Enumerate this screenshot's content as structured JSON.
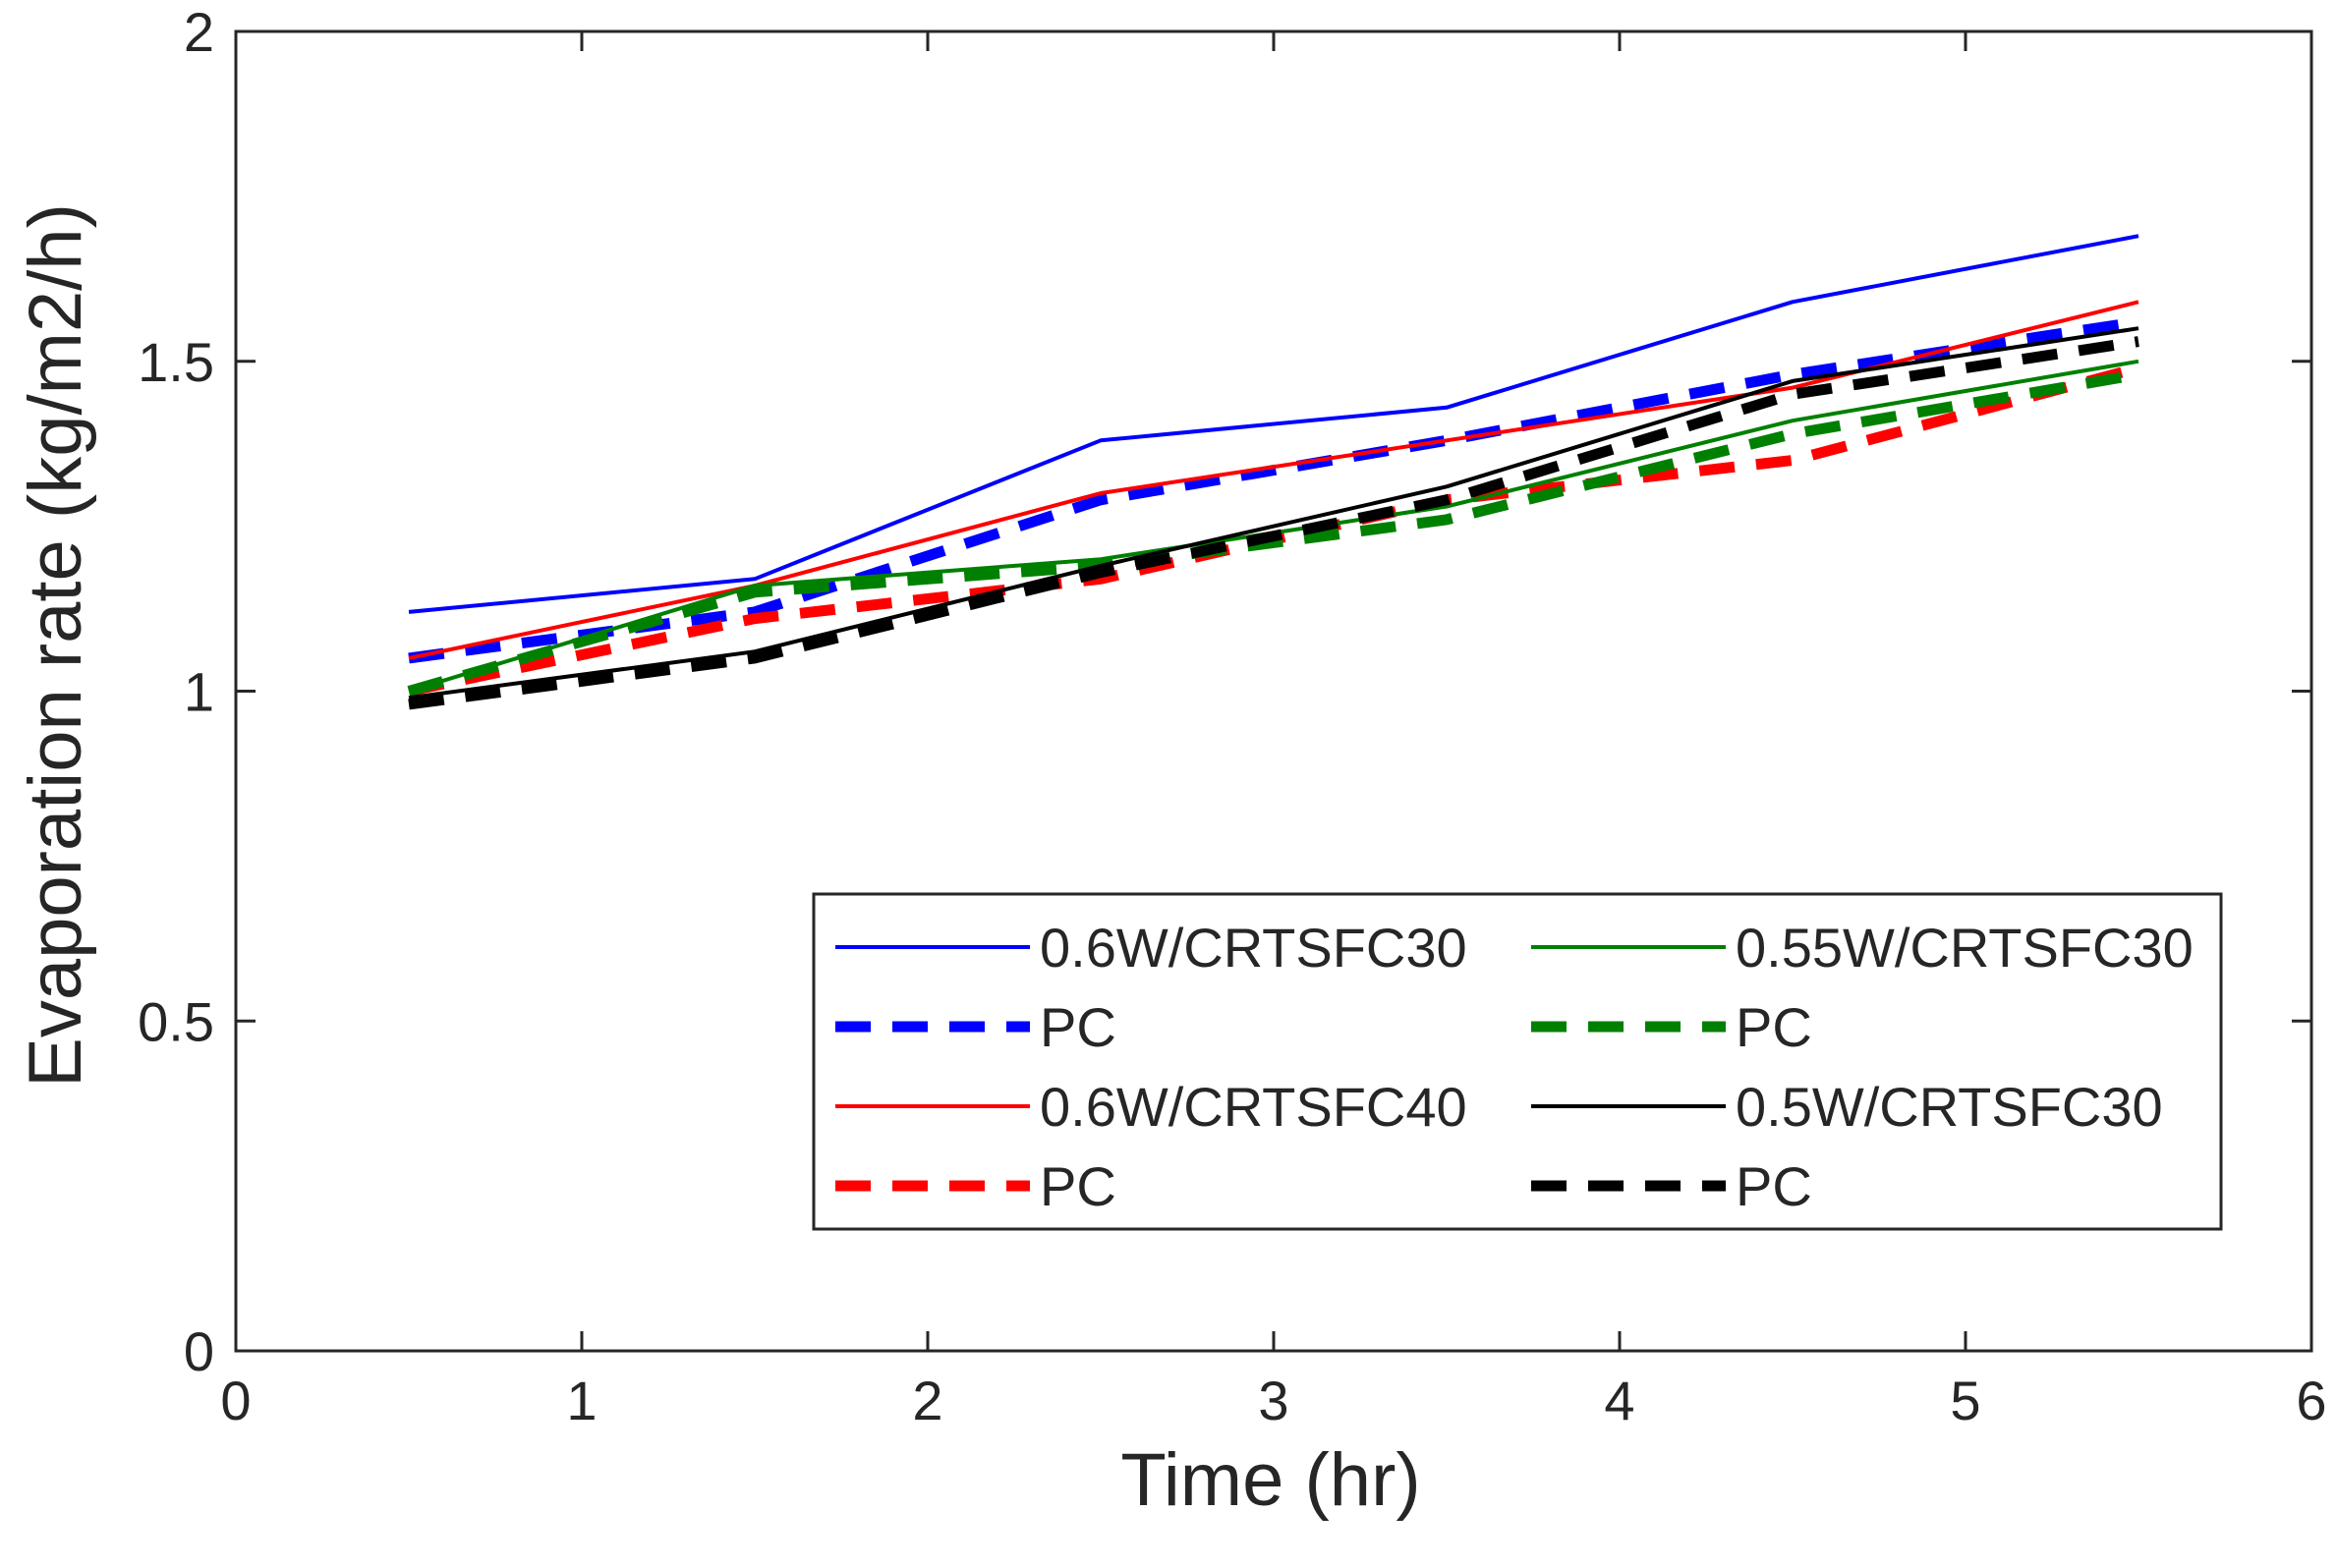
{
  "chart_data": {
    "type": "line",
    "title": "",
    "xlabel": "Time (hr)",
    "ylabel": "Evaporation rate (kg/m2/h)",
    "xlim": [
      0,
      6
    ],
    "ylim": [
      0,
      2
    ],
    "xticks": [
      0,
      1,
      2,
      3,
      4,
      5,
      6
    ],
    "yticks": [
      0,
      0.5,
      1,
      1.5,
      2
    ],
    "xtick_labels": [
      "0",
      "1",
      "2",
      "3",
      "4",
      "5",
      "6"
    ],
    "ytick_labels": [
      "0",
      "0.5",
      "1",
      "1.5",
      "2"
    ],
    "grid": false,
    "legend": {
      "placement": "lower-right",
      "columns": 2
    },
    "x": [
      0.5,
      1.5,
      2.5,
      3.5,
      4.5,
      5.5
    ],
    "series": [
      {
        "name": "0.6W/CRTSFC30",
        "color": "#0000ff",
        "style": "solid",
        "values": [
          1.12,
          1.17,
          1.38,
          1.43,
          1.59,
          1.69
        ]
      },
      {
        "name": "PC",
        "color": "#0000ff",
        "style": "dashed",
        "values": [
          1.05,
          1.12,
          1.29,
          1.38,
          1.48,
          1.56
        ]
      },
      {
        "name": "0.6W/CRTSFC40",
        "color": "#ff0000",
        "style": "solid",
        "values": [
          1.05,
          1.16,
          1.3,
          1.38,
          1.46,
          1.59
        ]
      },
      {
        "name": "PC",
        "color": "#ff0000",
        "style": "dashed",
        "values": [
          1.0,
          1.11,
          1.17,
          1.29,
          1.35,
          1.49
        ]
      },
      {
        "name": "0.55W/CRTSFC30",
        "color": "#008000",
        "style": "solid",
        "values": [
          1.0,
          1.16,
          1.2,
          1.28,
          1.41,
          1.5
        ]
      },
      {
        "name": "PC",
        "color": "#008000",
        "style": "dashed",
        "values": [
          1.0,
          1.15,
          1.19,
          1.26,
          1.39,
          1.48
        ]
      },
      {
        "name": "0.5W/CRTSFC30",
        "color": "#000000",
        "style": "solid",
        "values": [
          0.99,
          1.06,
          1.19,
          1.31,
          1.47,
          1.55
        ]
      },
      {
        "name": "PC",
        "color": "#000000",
        "style": "dashed",
        "values": [
          0.98,
          1.05,
          1.18,
          1.29,
          1.45,
          1.53
        ]
      }
    ]
  }
}
